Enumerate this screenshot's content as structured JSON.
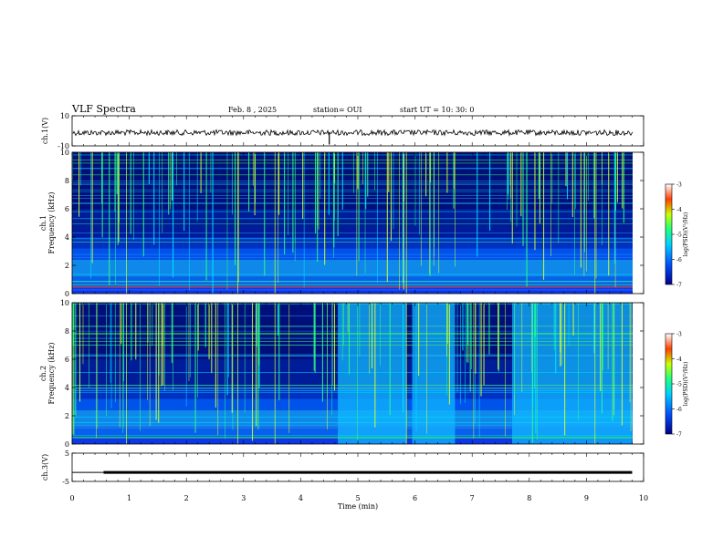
{
  "header": {
    "title": "VLF Spectra",
    "date": "Feb. 8  , 2025",
    "station": "station= OUI",
    "start": "start  UT  =   10: 30: 0"
  },
  "chart_data": [
    {
      "type": "line",
      "title": "",
      "ylabel": "ch.1(V)",
      "ylim": [
        -10,
        10
      ],
      "y_ticks": [
        "10",
        "-10"
      ],
      "description_values": {
        "baseline": 0,
        "noise_amplitude": 1.5,
        "spike_time_min": 4.5,
        "spike_value": -2
      }
    },
    {
      "type": "heatmap",
      "ylabel": "ch.1\nFrequency (kHz)",
      "ylim": [
        0,
        10
      ],
      "xlim": [
        0,
        10
      ],
      "y_ticks": [
        "0",
        "2",
        "4",
        "6",
        "8",
        "10"
      ],
      "colorbar": {
        "label": "log(PSD)(V²/Hz)",
        "ticks": [
          "-3",
          "-4",
          "-5",
          "-6",
          "-7"
        ],
        "range": [
          -7,
          -3
        ]
      }
    },
    {
      "type": "heatmap",
      "ylabel": "ch.2\nFrequency (kHz)",
      "ylim": [
        0,
        10
      ],
      "xlim": [
        0,
        10
      ],
      "y_ticks": [
        "0",
        "2",
        "4",
        "6",
        "8",
        "10"
      ],
      "bright_intervals_min": [
        [
          4.65,
          5.85
        ],
        [
          5.95,
          6.7
        ],
        [
          7.7,
          9.8
        ]
      ],
      "colorbar": {
        "label": "log(PSD)(V²/Hz)",
        "ticks": [
          "-3",
          "-4",
          "-5",
          "-6",
          "-7"
        ],
        "range": [
          -7,
          -3
        ]
      }
    },
    {
      "type": "line",
      "ylabel": "ch.3(V)",
      "ylim": [
        -5,
        5
      ],
      "y_ticks": [
        "5",
        "-5"
      ],
      "x": [
        0.55,
        9.8
      ],
      "values": [
        -1.8,
        -1.8
      ]
    }
  ],
  "x_axis": {
    "label": "Time  (min)",
    "ticks": [
      "0",
      "1",
      "2",
      "3",
      "4",
      "5",
      "6",
      "7",
      "8",
      "9",
      "10"
    ]
  }
}
